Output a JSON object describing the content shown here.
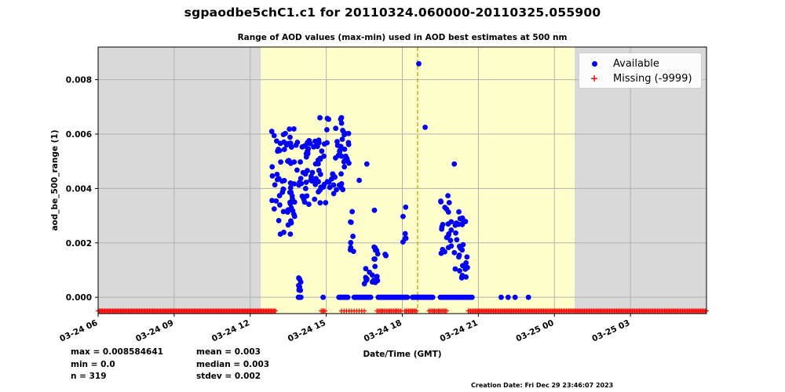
{
  "title": "sgpaodbe5chC1.c1 for 20110324.060000-20110325.055900",
  "subtitle": "Range of AOD values (max-min) used in AOD best estimates at 500 nm",
  "stats_left": [
    "max = 0.008584641",
    "min = 0.0",
    "n = 319"
  ],
  "stats_right": [
    "mean = 0.003",
    "median = 0.003",
    "stdev = 0.002"
  ],
  "creation_date": "Creation Date: Fri Dec 29 23:46:07 2023",
  "colors": {
    "available": "#0000ff",
    "missing": "#ff0000",
    "outside_shade": "#d9d9d9",
    "daylight_shade": "#ffffcc",
    "reference_line": "#c8b400",
    "grid": "#b0b0b0"
  },
  "chart_data": {
    "type": "scatter",
    "title": "Range of AOD values (max-min) used in AOD best estimates at 500 nm",
    "xlabel": "Date/Time (GMT)",
    "ylabel": "aod_be_500_range (1)",
    "x_units": "hours since 2011-03-24 00:00 GMT",
    "xlim": [
      6.0,
      30.0
    ],
    "ylim": [
      -0.0006,
      0.0092
    ],
    "grid": true,
    "legend_position": "top-right",
    "x_ticks": [
      {
        "value": 6,
        "label": "03-24 06"
      },
      {
        "value": 9,
        "label": "03-24 09"
      },
      {
        "value": 12,
        "label": "03-24 12"
      },
      {
        "value": 15,
        "label": "03-24 15"
      },
      {
        "value": 18,
        "label": "03-24 18"
      },
      {
        "value": 21,
        "label": "03-24 21"
      },
      {
        "value": 24,
        "label": "03-25 00"
      },
      {
        "value": 27,
        "label": "03-25 03"
      }
    ],
    "y_ticks": [
      {
        "value": 0.0,
        "label": "0.000"
      },
      {
        "value": 0.002,
        "label": "0.002"
      },
      {
        "value": 0.004,
        "label": "0.004"
      },
      {
        "value": 0.006,
        "label": "0.006"
      },
      {
        "value": 0.008,
        "label": "0.008"
      }
    ],
    "shaded_regions": [
      {
        "x0": 6.0,
        "x1": 12.42,
        "kind": "outside"
      },
      {
        "x0": 12.42,
        "x1": 24.8,
        "kind": "daylight"
      },
      {
        "x0": 24.8,
        "x1": 30.0,
        "kind": "outside"
      }
    ],
    "reference_line_x": 18.6,
    "missing_value_y": -0.0005,
    "series": [
      {
        "name": "Available",
        "marker": "dot",
        "color": "#0000ff",
        "clusters": [
          {
            "x0": 12.85,
            "x1": 13.95,
            "y0": 0.0023,
            "y1": 0.0062,
            "n": 70
          },
          {
            "x0": 13.9,
            "x1": 14.0,
            "y0": 0.0,
            "y1": 0.0008,
            "n": 8
          },
          {
            "x0": 13.95,
            "x1": 15.0,
            "y0": 0.0034,
            "y1": 0.0058,
            "n": 60
          },
          {
            "x0": 15.0,
            "x1": 15.9,
            "y0": 0.0038,
            "y1": 0.0066,
            "n": 45
          },
          {
            "x0": 15.95,
            "x1": 16.1,
            "y0": 0.0015,
            "y1": 0.0033,
            "n": 8
          },
          {
            "x0": 16.5,
            "x1": 16.75,
            "y0": 0.0002,
            "y1": 0.0013,
            "n": 6
          },
          {
            "x0": 16.8,
            "x1": 17.05,
            "y0": 0.0005,
            "y1": 0.0019,
            "n": 14
          },
          {
            "x0": 17.3,
            "x1": 17.45,
            "y0": 0.0012,
            "y1": 0.0019,
            "n": 3
          },
          {
            "x0": 17.95,
            "x1": 18.15,
            "y0": 0.001,
            "y1": 0.0034,
            "n": 6
          },
          {
            "x0": 19.45,
            "x1": 19.95,
            "y0": 0.0016,
            "y1": 0.0039,
            "n": 22
          },
          {
            "x0": 20.05,
            "x1": 20.6,
            "y0": 0.0007,
            "y1": 0.0032,
            "n": 30
          }
        ],
        "points": [
          {
            "x": 18.65,
            "y": 0.008585
          },
          {
            "x": 18.9,
            "y": 0.00625
          },
          {
            "x": 14.75,
            "y": 0.0066
          },
          {
            "x": 15.6,
            "y": 0.0066
          },
          {
            "x": 16.6,
            "y": 0.0049
          },
          {
            "x": 20.05,
            "y": 0.0049
          },
          {
            "x": 16.3,
            "y": 0.0043
          },
          {
            "x": 16.9,
            "y": 0.0032
          },
          {
            "x": 12.85,
            "y": 0.0061
          }
        ],
        "zero_runs": [
          {
            "x0": 13.9,
            "x1": 14.0,
            "n": 4
          },
          {
            "x0": 14.85,
            "x1": 14.9,
            "n": 1
          },
          {
            "x0": 15.5,
            "x1": 15.85,
            "n": 10
          },
          {
            "x0": 16.1,
            "x1": 16.75,
            "n": 14
          },
          {
            "x0": 17.05,
            "x1": 18.2,
            "n": 28
          },
          {
            "x0": 18.4,
            "x1": 19.2,
            "n": 22
          },
          {
            "x0": 19.5,
            "x1": 20.75,
            "n": 18
          },
          {
            "x0": 21.9,
            "x1": 22.45,
            "n": 3
          },
          {
            "x0": 22.95,
            "x1": 23.0,
            "n": 1
          }
        ]
      },
      {
        "name": "Missing (-9999)",
        "marker": "plus",
        "color": "#ff0000",
        "runs": [
          {
            "x0": 6.0,
            "x1": 13.0,
            "n": 160
          },
          {
            "x0": 14.8,
            "x1": 14.95,
            "n": 4
          },
          {
            "x0": 15.6,
            "x1": 16.5,
            "n": 10
          },
          {
            "x0": 17.0,
            "x1": 17.95,
            "n": 18
          },
          {
            "x0": 18.1,
            "x1": 18.55,
            "n": 10
          },
          {
            "x0": 19.05,
            "x1": 19.75,
            "n": 14
          },
          {
            "x0": 20.6,
            "x1": 30.0,
            "n": 200
          }
        ]
      }
    ]
  }
}
